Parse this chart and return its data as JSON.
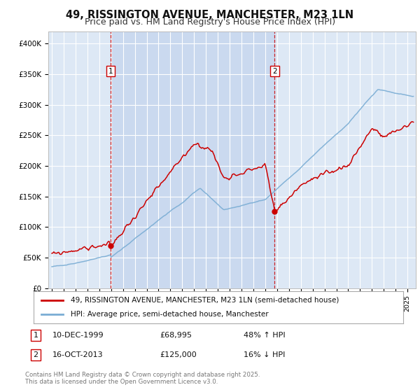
{
  "title": "49, RISSINGTON AVENUE, MANCHESTER, M23 1LN",
  "subtitle": "Price paid vs. HM Land Registry's House Price Index (HPI)",
  "title_fontsize": 10.5,
  "subtitle_fontsize": 9,
  "background_color": "#ffffff",
  "plot_bg_color": "#dde8f5",
  "shade_color": "#c8d8ef",
  "grid_color": "#ffffff",
  "ylim": [
    0,
    420000
  ],
  "yticks": [
    0,
    50000,
    100000,
    150000,
    200000,
    250000,
    300000,
    350000,
    400000
  ],
  "ytick_labels": [
    "£0",
    "£50K",
    "£100K",
    "£150K",
    "£200K",
    "£250K",
    "£300K",
    "£350K",
    "£400K"
  ],
  "red_line_color": "#cc0000",
  "blue_line_color": "#7aadd4",
  "annotation1": {
    "label": "1",
    "date_str": "10-DEC-1999",
    "price": 68995,
    "hpi_pct": "48% ↑ HPI"
  },
  "annotation2": {
    "label": "2",
    "date_str": "16-OCT-2013",
    "price": 125000,
    "hpi_pct": "16% ↓ HPI"
  },
  "legend_label_red": "49, RISSINGTON AVENUE, MANCHESTER, M23 1LN (semi-detached house)",
  "legend_label_blue": "HPI: Average price, semi-detached house, Manchester",
  "footer": "Contains HM Land Registry data © Crown copyright and database right 2025.\nThis data is licensed under the Open Government Licence v3.0.",
  "marker1_year": 1999.95,
  "marker2_year": 2013.79,
  "marker1_price": 68995,
  "marker2_price": 125000
}
